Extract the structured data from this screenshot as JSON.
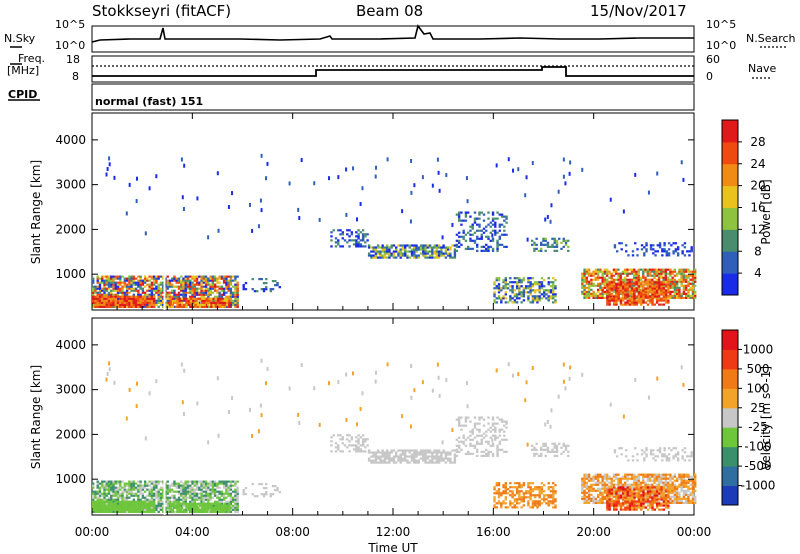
{
  "header": {
    "radar": "Stokkseyri (fitACF)",
    "beam": "Beam 08",
    "date": "15/Nov/2017"
  },
  "status_panel": {
    "nsky_label": "N.Sky",
    "nsearch_label": "N.Search",
    "nsky_ticks": [
      "10^5",
      "10^0"
    ],
    "nsearch_ticks": [
      "10^5",
      "10^0"
    ],
    "freq_label": "Freq.",
    "freq_unit": "[MHz]",
    "freq_ticks": [
      "18",
      "8"
    ],
    "nave_label": "Nave",
    "nave_ticks": [
      "60",
      "0"
    ],
    "cpid_label": "CPID",
    "cpid_value": "normal (fast) 151"
  },
  "chart_data": [
    {
      "type": "heatmap",
      "name": "power",
      "ylabel": "Slant Range [km]",
      "yticks": [
        1000,
        2000,
        3000,
        4000
      ],
      "ylim": [
        200,
        4600
      ],
      "colorbar_label": "Power [dB]",
      "colorbar_ticks": [
        4,
        8,
        12,
        16,
        20,
        24,
        28
      ],
      "colorbar_colors": [
        "#1a2be8",
        "#2f5fb8",
        "#4a8c6e",
        "#8ec33f",
        "#e9c21d",
        "#f08c16",
        "#ef4a0f",
        "#e0191a"
      ]
    },
    {
      "type": "heatmap",
      "name": "velocity",
      "ylabel": "Slant Range [km]",
      "yticks": [
        1000,
        2000,
        3000,
        4000
      ],
      "ylim": [
        200,
        4600
      ],
      "xlabel": "Time UT",
      "xticks": [
        "00:00",
        "04:00",
        "08:00",
        "12:00",
        "16:00",
        "20:00",
        "00:00"
      ],
      "colorbar_label": "Velocity [m s^-1]",
      "colorbar_ticks": [
        "1000",
        "500",
        "100",
        "25",
        "-25",
        "-100",
        "-500",
        "-1000"
      ],
      "colorbar_colors": [
        "#1d3ab8",
        "#2f6ea0",
        "#3c8f6c",
        "#6ec63a",
        "#c7c7c7",
        "#f2a32a",
        "#f07a16",
        "#ef3a16",
        "#e0141a"
      ]
    }
  ]
}
